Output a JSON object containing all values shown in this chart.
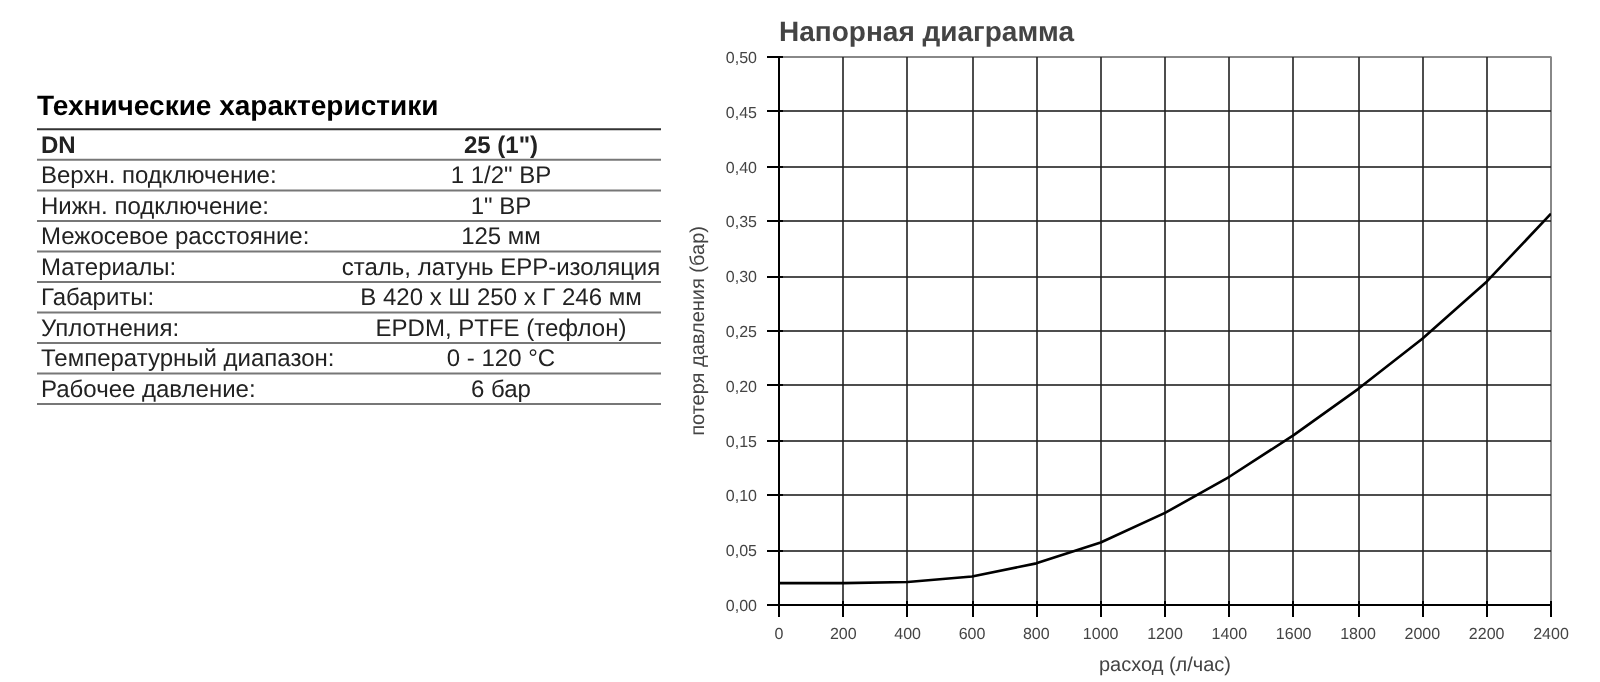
{
  "chart_data": [
    {
      "type": "other",
      "title": "Технические характеристики",
      "annotations": [
        "DN",
        "25 (1\")",
        "Верхн. подключение:",
        "1 1/2\" ВР",
        "Нижн. подключение:",
        "1\" ВР",
        "Межосевое расстояние:",
        "125 мм",
        "Материалы:",
        "сталь, латунь EPP-изоляция",
        "Габариты:",
        "В 420 х Ш 250 х Г 246 мм",
        "Уплотнения:",
        "EPDM, PTFE (тефлон)",
        "Температурный диапазон:",
        "0 - 120 °C",
        "Рабочее давление:",
        "6 бар"
      ]
    },
    {
      "type": "line",
      "title": "Напорная диаграмма",
      "xlabel": "расход (л/час)",
      "ylabel": "потеря давления (бар)",
      "x": [
        0,
        200,
        400,
        600,
        800,
        1000,
        1200,
        1400,
        1600,
        1800,
        2000,
        2200,
        2400
      ],
      "series": [
        {
          "color": "#000000",
          "values": [
            0.02,
            0.02,
            0.021,
            0.026,
            0.038,
            0.057,
            0.084,
            0.117,
            0.155,
            0.197,
            0.243,
            0.295,
            0.357
          ]
        }
      ],
      "xlim": [
        0,
        2400
      ],
      "xticks": [
        0,
        200,
        400,
        600,
        800,
        1000,
        1200,
        1400,
        1600,
        1800,
        2000,
        2200,
        2400
      ],
      "ylim": [
        0,
        0.5
      ],
      "yticks": [
        {
          "value": 0,
          "label": "0,00"
        },
        {
          "value": 0.05,
          "label": "0,05"
        },
        {
          "value": 0.1,
          "label": "0,10"
        },
        {
          "value": 0.15,
          "label": "0,15"
        },
        {
          "value": 0.2,
          "label": "0,20"
        },
        {
          "value": 0.25,
          "label": "0,25"
        },
        {
          "value": 0.3,
          "label": "0,30"
        },
        {
          "value": 0.35,
          "label": "0,35"
        },
        {
          "value": 0.4,
          "label": "0,40"
        },
        {
          "value": 0.45,
          "label": "0,45"
        },
        {
          "value": 0.5,
          "label": "0,50"
        }
      ],
      "grid": true,
      "line_style": "solid"
    }
  ]
}
